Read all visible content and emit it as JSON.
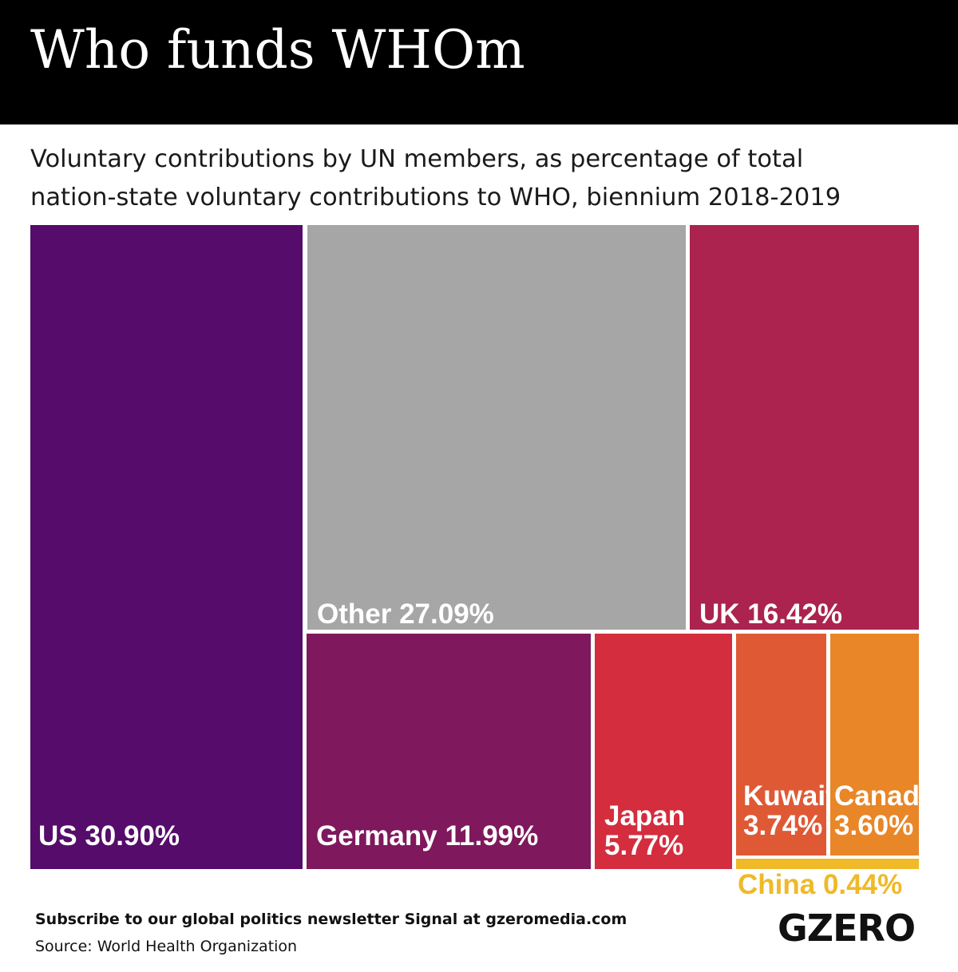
{
  "header": {
    "title": "Who funds WHOm"
  },
  "subtitle": {
    "line1": "Voluntary contributions by UN members, as percentage of total",
    "line2": "nation-state voluntary contributions to WHO, biennium 2018-2019"
  },
  "chart_data": {
    "type": "treemap",
    "unit": "%",
    "items": [
      {
        "name": "US",
        "value": 30.9,
        "label": "US 30.90%",
        "color": "#550c6a"
      },
      {
        "name": "Other",
        "value": 27.09,
        "label": "Other 27.09%",
        "color": "#a6a6a6"
      },
      {
        "name": "UK",
        "value": 16.42,
        "label": "UK 16.42%",
        "color": "#ab234e"
      },
      {
        "name": "Germany",
        "value": 11.99,
        "label": "Germany 11.99%",
        "color": "#7f185d"
      },
      {
        "name": "Japan",
        "value": 5.77,
        "label_lines": [
          "Japan",
          "5.77%"
        ],
        "color": "#d32d3e"
      },
      {
        "name": "Kuwait",
        "value": 3.74,
        "label_lines": [
          "Kuwait",
          "3.74%"
        ],
        "color": "#df5935"
      },
      {
        "name": "Canada",
        "value": 3.6,
        "label_lines": [
          "Canada",
          "3.60%"
        ],
        "color": "#e88628"
      },
      {
        "name": "China",
        "value": 0.44,
        "label": "China 0.44%",
        "color": "#efb928"
      }
    ]
  },
  "footer": {
    "subscribe_text": "Subscribe to our global politics newsletter Signal at gzeromedia.com",
    "source_text": "Source: World Health Organization",
    "logo_text": "GZERO"
  }
}
